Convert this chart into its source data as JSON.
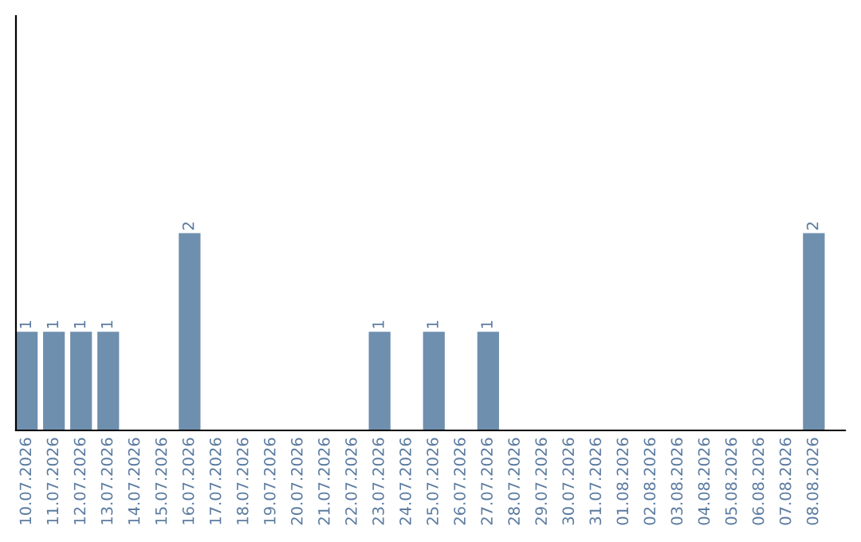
{
  "chart_data": {
    "type": "bar",
    "categories": [
      "10.07.2026",
      "11.07.2026",
      "12.07.2026",
      "13.07.2026",
      "14.07.2026",
      "15.07.2026",
      "16.07.2026",
      "17.07.2026",
      "18.07.2026",
      "19.07.2026",
      "20.07.2026",
      "21.07.2026",
      "22.07.2026",
      "23.07.2026",
      "24.07.2026",
      "25.07.2026",
      "26.07.2026",
      "27.07.2026",
      "28.07.2026",
      "29.07.2026",
      "30.07.2026",
      "31.07.2026",
      "01.08.2026",
      "02.08.2026",
      "03.08.2026",
      "04.08.2026",
      "05.08.2026",
      "06.08.2026",
      "07.08.2026",
      "08.08.2026"
    ],
    "values": [
      1,
      1,
      1,
      1,
      0,
      0,
      2,
      0,
      0,
      0,
      0,
      0,
      0,
      1,
      0,
      1,
      0,
      1,
      0,
      0,
      0,
      0,
      0,
      0,
      0,
      0,
      0,
      0,
      0,
      2
    ],
    "value_labels": [
      "1",
      "1",
      "1",
      "1",
      null,
      null,
      "2",
      null,
      null,
      null,
      null,
      null,
      null,
      "1",
      null,
      "1",
      null,
      "1",
      null,
      null,
      null,
      null,
      null,
      null,
      null,
      null,
      null,
      null,
      null,
      "2"
    ],
    "color": "#6f8fae",
    "ylim": [
      0,
      4.2
    ],
    "tick_labels": "x"
  }
}
